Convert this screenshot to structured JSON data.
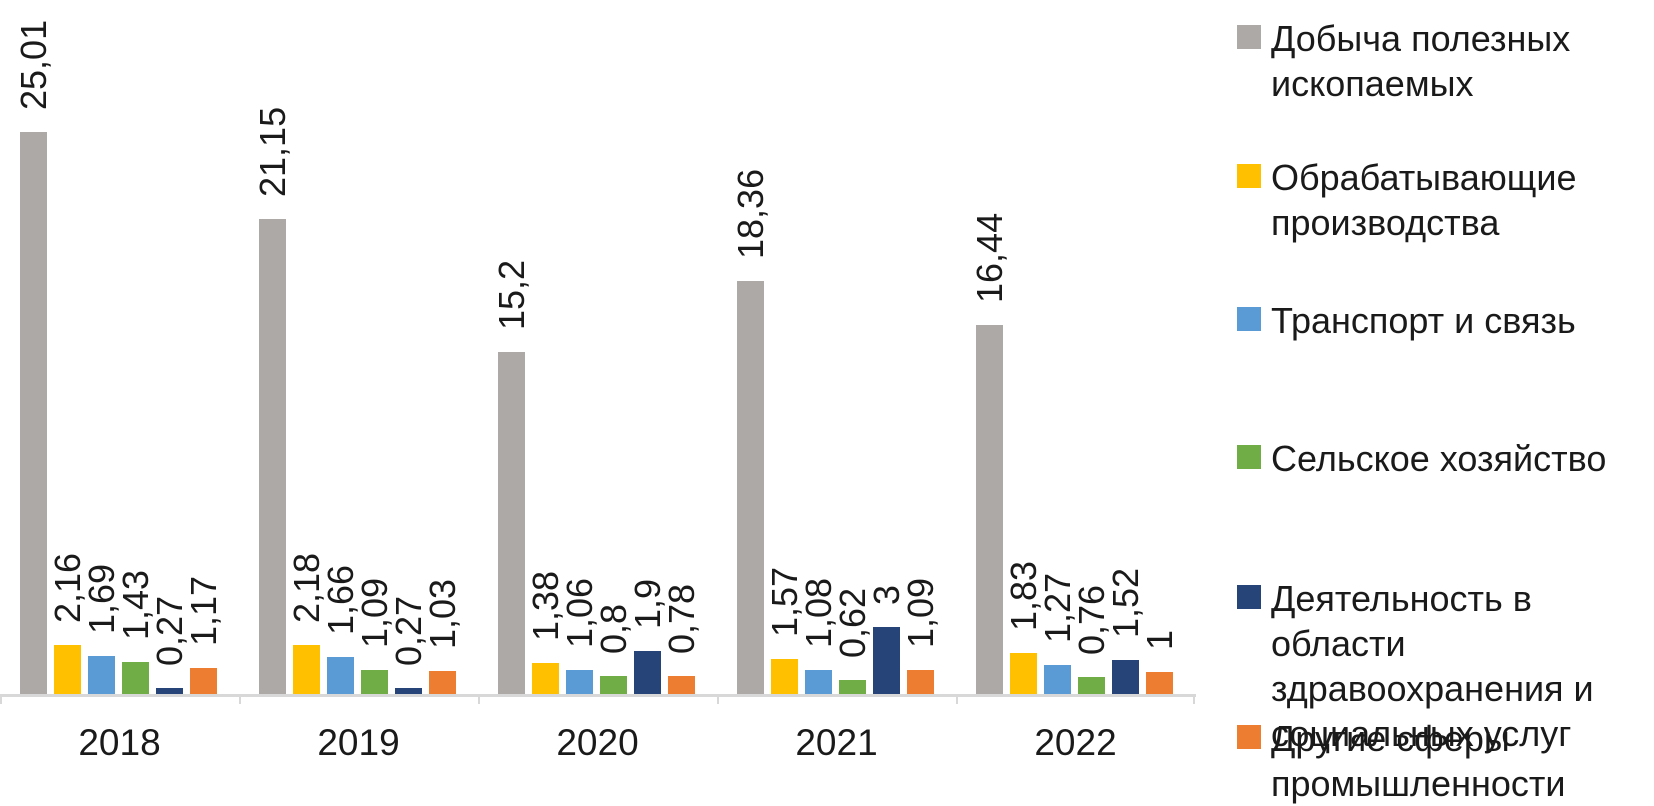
{
  "chart_data": {
    "type": "bar",
    "title": "",
    "xlabel": "",
    "ylabel": "",
    "categories": [
      "2018",
      "2019",
      "2020",
      "2021",
      "2022"
    ],
    "series": [
      {
        "name": "Добыча полезных ископаемых",
        "color": "#aca9a7",
        "values": [
          25.01,
          21.15,
          15.2,
          18.36,
          16.44
        ],
        "labels": [
          "25,01",
          "21,15",
          "15,2",
          "18,36",
          "16,44"
        ]
      },
      {
        "name": "Обрабатывающие производства",
        "color": "#ffc000",
        "values": [
          2.16,
          2.18,
          1.38,
          1.57,
          1.83
        ],
        "labels": [
          "2,16",
          "2,18",
          "1,38",
          "1,57",
          "1,83"
        ]
      },
      {
        "name": "Транспорт и связь",
        "color": "#5b9bd5",
        "values": [
          1.69,
          1.66,
          1.06,
          1.08,
          1.27
        ],
        "labels": [
          "1,69",
          "1,66",
          "1,06",
          "1,08",
          "1,27"
        ]
      },
      {
        "name": "Сельское хозяйство",
        "color": "#70ad47",
        "values": [
          1.43,
          1.09,
          0.8,
          0.62,
          0.76
        ],
        "labels": [
          "1,43",
          "1,09",
          "0,8",
          "0,62",
          "0,76"
        ]
      },
      {
        "name": "Деятельность в области здравоохранения и социальных услуг",
        "color": "#264478",
        "values": [
          0.27,
          0.27,
          1.9,
          3,
          1.52
        ],
        "labels": [
          "0,27",
          "0,27",
          "1,9",
          "3",
          "1,52"
        ]
      },
      {
        "name": "Другие сферы промышленности",
        "color": "#ed7d31",
        "values": [
          1.17,
          1.03,
          0.78,
          1.09,
          1
        ],
        "labels": [
          "1,17",
          "1,03",
          "0,78",
          "1,09",
          "1"
        ]
      }
    ],
    "ylim": [
      0,
      26
    ],
    "grid": false,
    "axis_line_color": "#d8d8d8",
    "value_label_rotation": -90,
    "decimal_separator": ",",
    "legend_position": "right"
  }
}
